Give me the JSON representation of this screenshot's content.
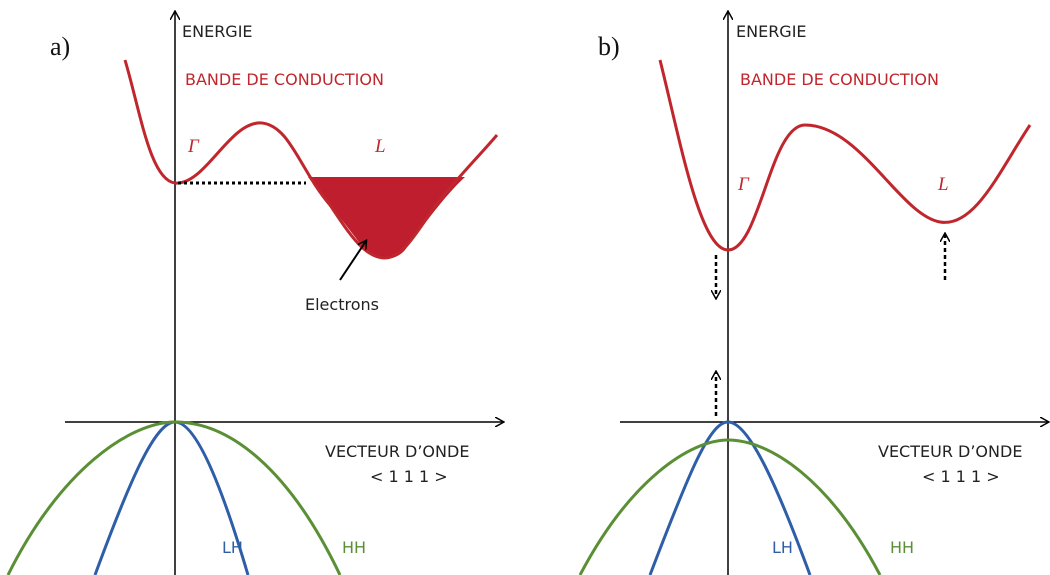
{
  "panels": [
    {
      "label": "a)",
      "y_axis": "ENERGIE",
      "band": "BANDE DE CONDUCTION",
      "gamma": "Γ",
      "l": "L",
      "x_axis": "VECTEUR D’ONDE",
      "direction": "< 1 1 1 >",
      "lh": "LH",
      "hh": "HH",
      "electrons": "Electrons"
    },
    {
      "label": "b)",
      "y_axis": "ENERGIE",
      "band": "BANDE DE CONDUCTION",
      "gamma": "Γ",
      "l": "L",
      "x_axis": "VECTEUR D’ONDE",
      "direction": "< 1 1 1 >",
      "lh": "LH",
      "hh": "HH"
    }
  ]
}
